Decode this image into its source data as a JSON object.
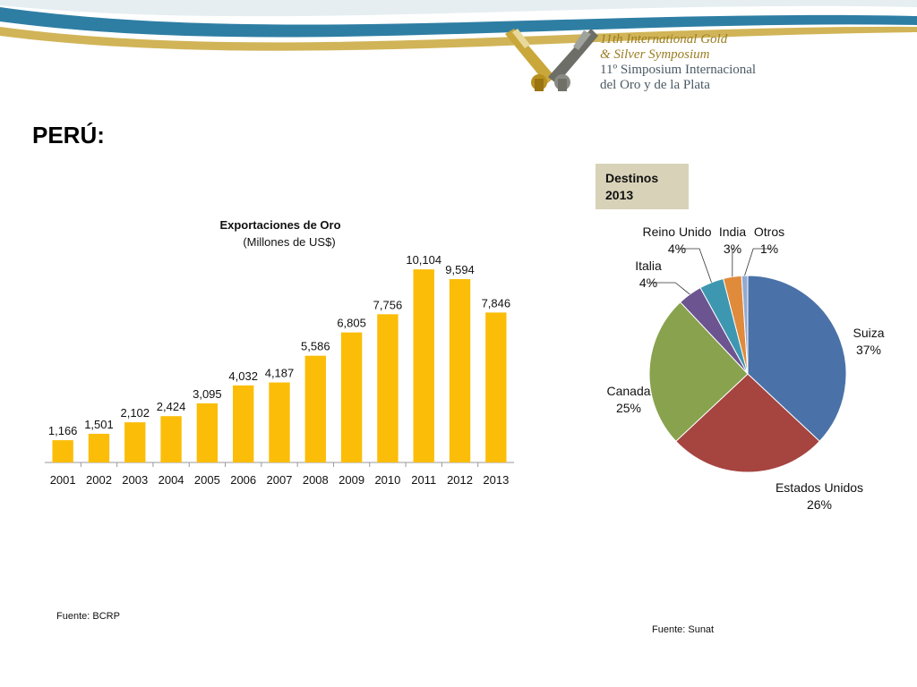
{
  "header": {
    "logo_line1": "11th International Gold",
    "logo_line2": "& Silver Symposium",
    "logo_line3": "11º Simposium Internacional",
    "logo_line4": "del Oro y de la Plata"
  },
  "page_title": "PERÚ:",
  "destinos_label": "Destinos 2013",
  "source_left": "Fuente: BCRP",
  "source_right": "Fuente: Sunat",
  "colors": {
    "bar": "#fbbd08",
    "swoosh_blue": "#2e7ea4",
    "swoosh_gold": "#c9a73a"
  },
  "chart_data": [
    {
      "type": "bar",
      "title": "Exportaciones de Oro",
      "subtitle": "(Millones de US$)",
      "categories": [
        "2001",
        "2002",
        "2003",
        "2004",
        "2005",
        "2006",
        "2007",
        "2008",
        "2009",
        "2010",
        "2011",
        "2012",
        "2013"
      ],
      "values": [
        1166,
        1501,
        2102,
        2424,
        3095,
        4032,
        4187,
        5586,
        6805,
        7756,
        10104,
        9594,
        7846
      ],
      "labels": [
        "1,166",
        "1,501",
        "2,102",
        "2,424",
        "3,095",
        "4,032",
        "4,187",
        "5,586",
        "6,805",
        "7,756",
        "10,104",
        "9,594",
        "7,846"
      ],
      "ylim": [
        0,
        11000
      ],
      "grid": false
    },
    {
      "type": "pie",
      "slices": [
        {
          "name": "Suiza",
          "value": 37,
          "label": "37%",
          "color": "#4a72a8"
        },
        {
          "name": "Estados Unidos",
          "value": 26,
          "label": "26%",
          "color": "#a64440"
        },
        {
          "name": "Canada",
          "value": 25,
          "label": "25%",
          "color": "#88a24e"
        },
        {
          "name": "Italia",
          "value": 4,
          "label": "4%",
          "color": "#6b5490"
        },
        {
          "name": "Reino Unido",
          "value": 4,
          "label": "4%",
          "color": "#3e97b0"
        },
        {
          "name": "India",
          "value": 3,
          "label": "3%",
          "color": "#e08a3c"
        },
        {
          "name": "Otros",
          "value": 1,
          "label": "1%",
          "color": "#93aad2"
        }
      ]
    }
  ]
}
